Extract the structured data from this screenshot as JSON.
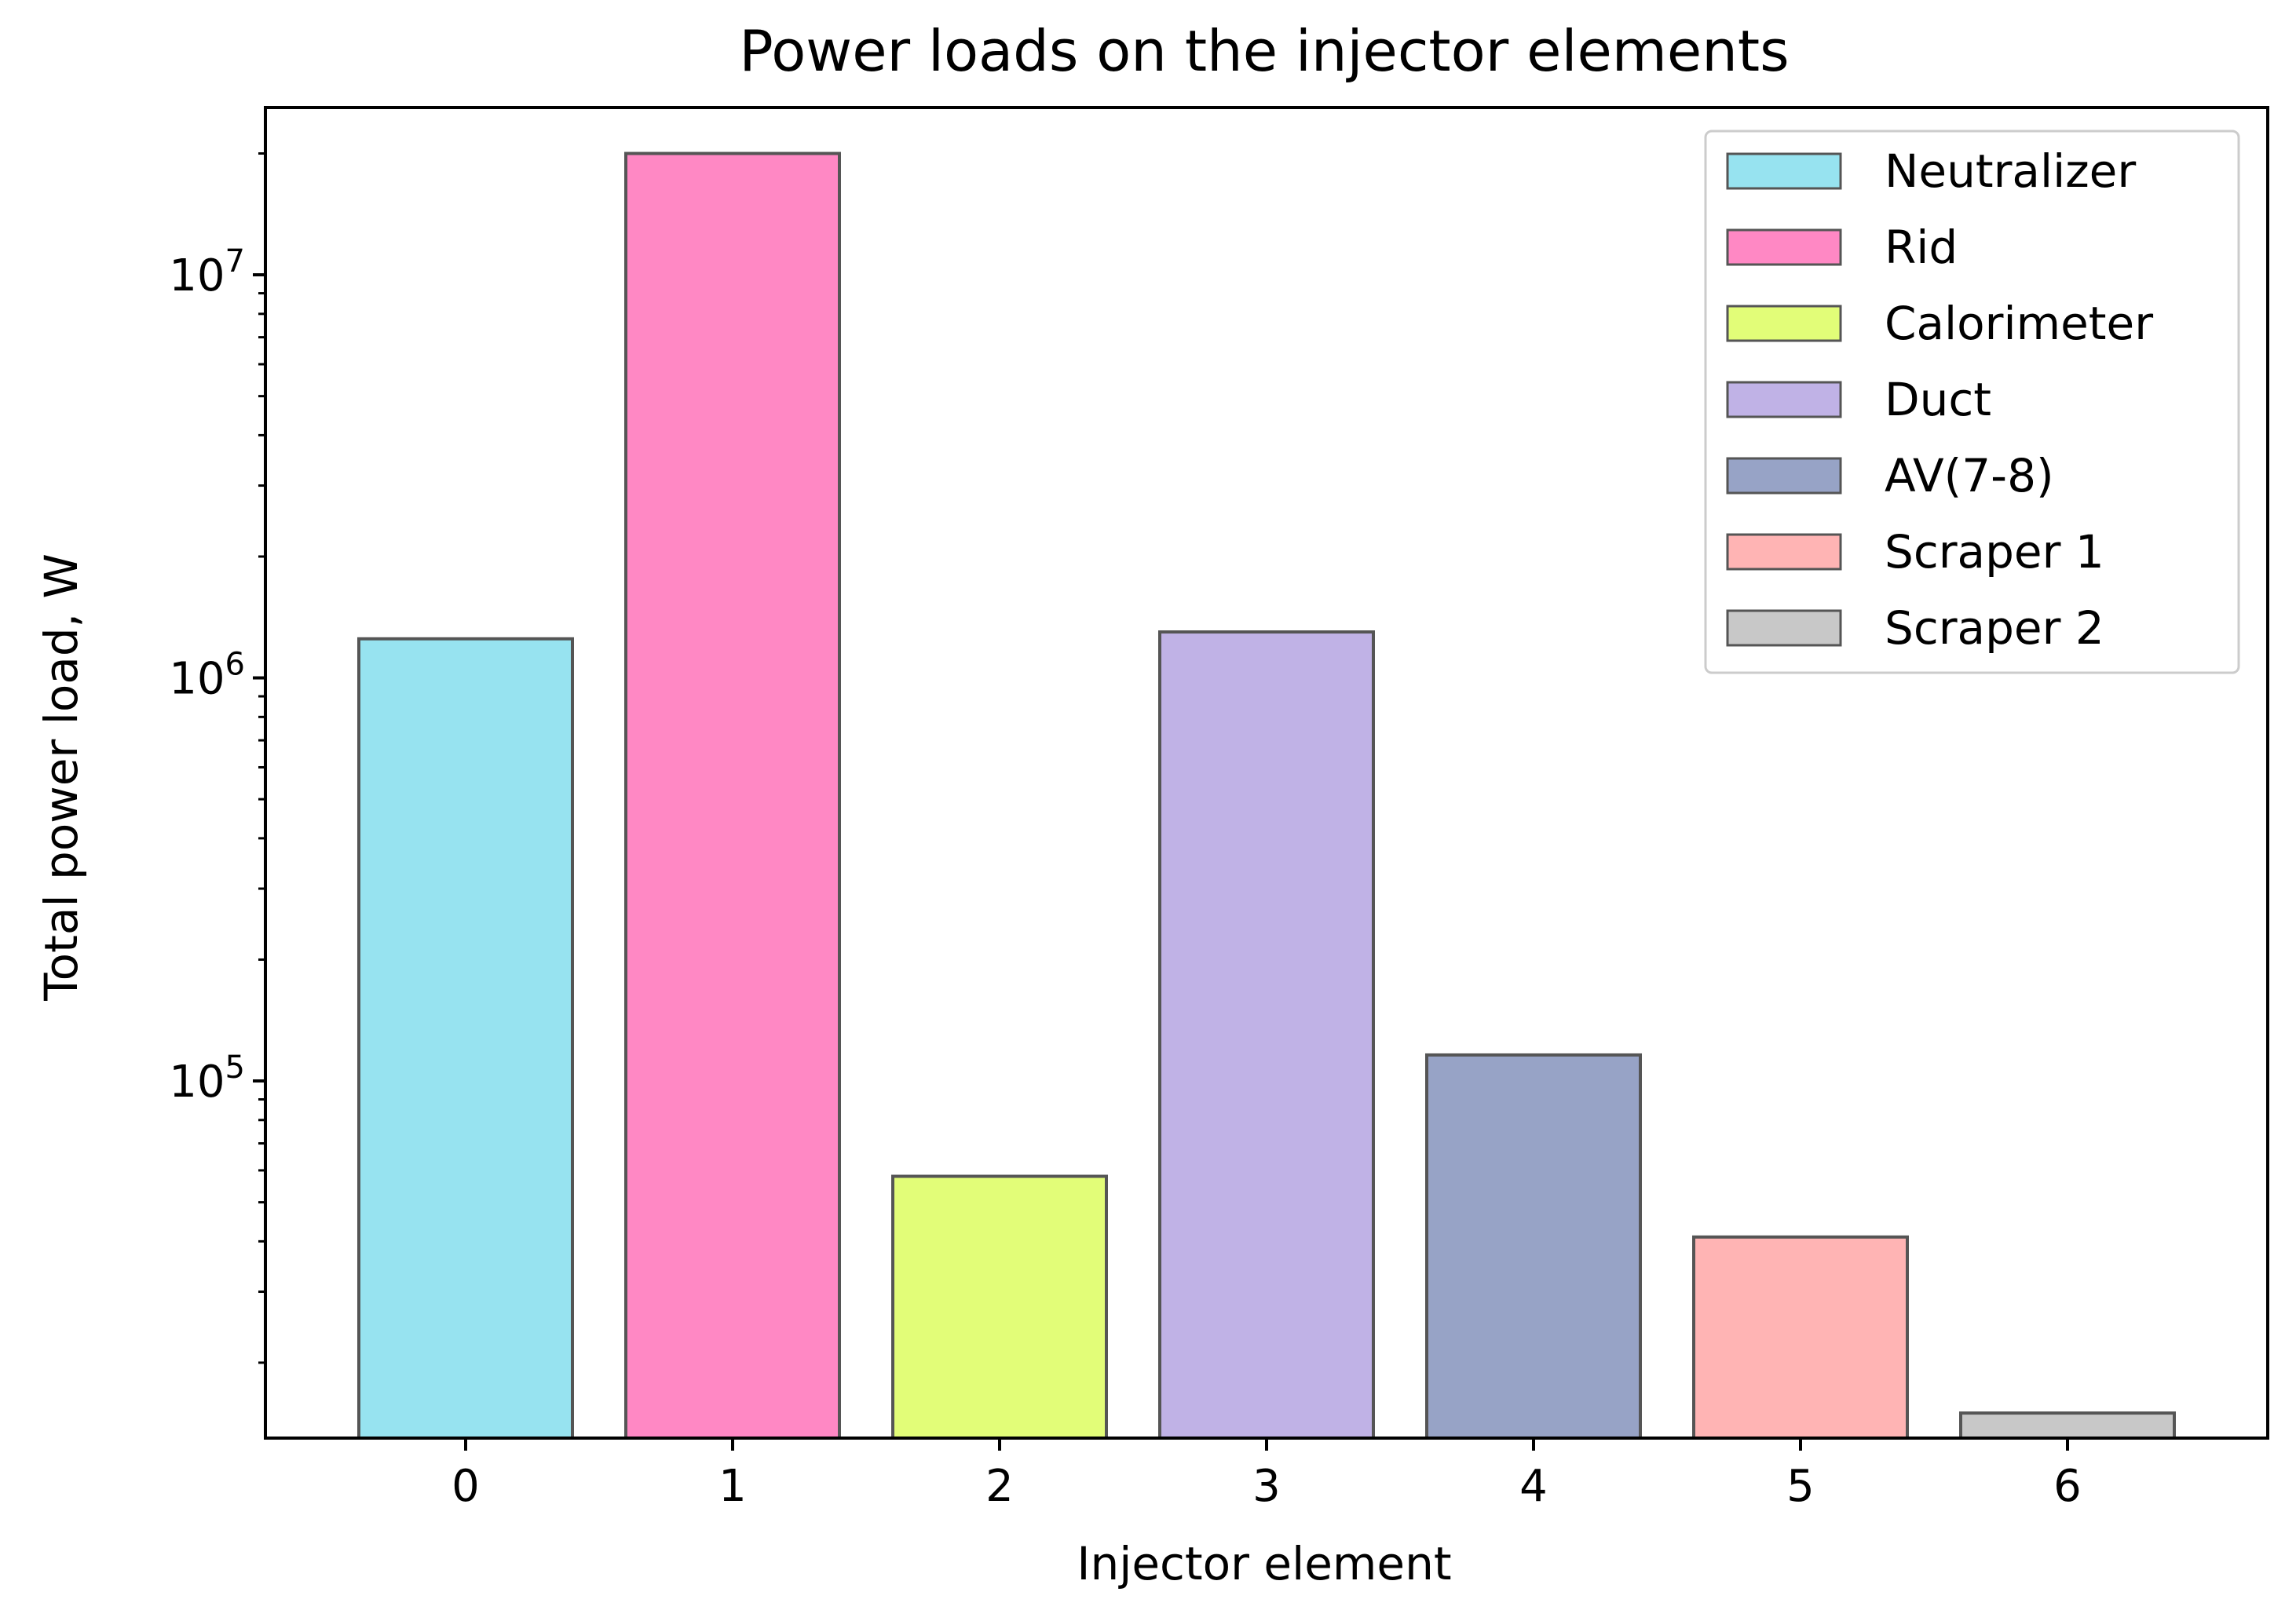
{
  "chart_data": {
    "type": "bar",
    "title": "Power loads on the injector elements",
    "xlabel": "Injector element",
    "ylabel": "Total power load, W",
    "yscale": "log",
    "ylim": [
      13000,
      26000000
    ],
    "x": [
      0,
      1,
      2,
      3,
      4,
      5,
      6
    ],
    "x_tick_labels": [
      "0",
      "1",
      "2",
      "3",
      "4",
      "5",
      "6"
    ],
    "y_tick_labels": [
      {
        "base": "10",
        "exp": "5",
        "value": 100000
      },
      {
        "base": "10",
        "exp": "6",
        "value": 1000000
      },
      {
        "base": "10",
        "exp": "7",
        "value": 10000000
      }
    ],
    "series": [
      {
        "name": "Neutralizer",
        "x": 0,
        "value": 1250000,
        "color": "#97e3f0"
      },
      {
        "name": "Rid",
        "x": 1,
        "value": 20000000,
        "color": "#ff88c4"
      },
      {
        "name": "Calorimeter",
        "x": 2,
        "value": 58000,
        "color": "#e2fd78"
      },
      {
        "name": "Duct",
        "x": 3,
        "value": 1300000,
        "color": "#c0b2e6"
      },
      {
        "name": "AV(7-8)",
        "x": 4,
        "value": 116000,
        "color": "#97a3c6"
      },
      {
        "name": "Scraper 1",
        "x": 5,
        "value": 41000,
        "color": "#ffb4b4"
      },
      {
        "name": "Scraper 2",
        "x": 6,
        "value": 15000,
        "color": "#c8c8c8"
      }
    ],
    "legend_position": "top-right",
    "grid": false,
    "edge_color": "#555555"
  }
}
